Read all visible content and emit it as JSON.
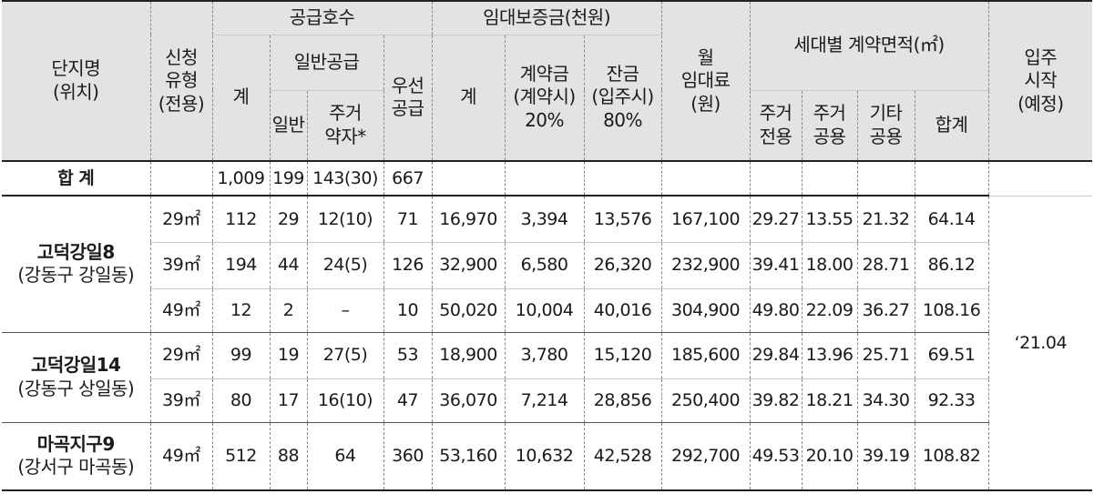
{
  "headers": {
    "complex_name": [
      "단지명",
      "(위치)"
    ],
    "type": [
      "신청",
      "유형",
      "(전용)"
    ],
    "supply_units": "공급호수",
    "supply_total": "계",
    "general_supply": "일반공급",
    "general": "일반",
    "housing_vulnerable": [
      "주거",
      "약자*"
    ],
    "priority_supply": [
      "우선",
      "공급"
    ],
    "deposit": "임대보증금(천원)",
    "deposit_total": "계",
    "contract_deposit": [
      "계약금",
      "(계약시)",
      "20%"
    ],
    "balance": [
      "잔금",
      "(입주시)",
      "80%"
    ],
    "monthly_rent": [
      "월",
      "임대료",
      "(원)"
    ],
    "contract_area": "세대별 계약면적(㎡)",
    "residential_exclusive": [
      "주거",
      "전용"
    ],
    "residential_common": [
      "주거",
      "공용"
    ],
    "other_common": [
      "기타",
      "공용"
    ],
    "area_total": "합계",
    "move_in": [
      "입주",
      "시작",
      "(예정)"
    ]
  },
  "total_row": {
    "label": "합 계",
    "supply_total": "1,009",
    "general": "199",
    "vulnerable": "143(30)",
    "priority": "667"
  },
  "complexes": [
    {
      "name": "고덕강일8",
      "location": "(강동구 강일동)",
      "rows": [
        {
          "type": "29㎡",
          "supply_total": "112",
          "general": "29",
          "vulnerable": "12(10)",
          "priority": "71",
          "deposit_total": "16,970",
          "contract": "3,394",
          "balance": "13,576",
          "rent": "167,100",
          "res_excl": "29.27",
          "res_common": "13.55",
          "other_common": "21.32",
          "area_total": "64.14"
        },
        {
          "type": "39㎡",
          "supply_total": "194",
          "general": "44",
          "vulnerable": "24(5)",
          "priority": "126",
          "deposit_total": "32,900",
          "contract": "6,580",
          "balance": "26,320",
          "rent": "232,900",
          "res_excl": "39.41",
          "res_common": "18.00",
          "other_common": "28.71",
          "area_total": "86.12"
        },
        {
          "type": "49㎡",
          "supply_total": "12",
          "general": "2",
          "vulnerable": "–",
          "priority": "10",
          "deposit_total": "50,020",
          "contract": "10,004",
          "balance": "40,016",
          "rent": "304,900",
          "res_excl": "49.80",
          "res_common": "22.09",
          "other_common": "36.27",
          "area_total": "108.16"
        }
      ]
    },
    {
      "name": "고덕강일14",
      "location": "(강동구 상일동)",
      "rows": [
        {
          "type": "29㎡",
          "supply_total": "99",
          "general": "19",
          "vulnerable": "27(5)",
          "priority": "53",
          "deposit_total": "18,900",
          "contract": "3,780",
          "balance": "15,120",
          "rent": "185,600",
          "res_excl": "29.84",
          "res_common": "13.96",
          "other_common": "25.71",
          "area_total": "69.51"
        },
        {
          "type": "39㎡",
          "supply_total": "80",
          "general": "17",
          "vulnerable": "16(10)",
          "priority": "47",
          "deposit_total": "36,070",
          "contract": "7,214",
          "balance": "28,856",
          "rent": "250,400",
          "res_excl": "39.82",
          "res_common": "18.21",
          "other_common": "34.30",
          "area_total": "92.33"
        }
      ]
    },
    {
      "name": "마곡지구9",
      "location": "(강서구 마곡동)",
      "rows": [
        {
          "type": "49㎡",
          "supply_total": "512",
          "general": "88",
          "vulnerable": "64",
          "priority": "360",
          "deposit_total": "53,160",
          "contract": "10,632",
          "balance": "42,528",
          "rent": "292,700",
          "res_excl": "49.53",
          "res_common": "20.10",
          "other_common": "39.19",
          "area_total": "108.82"
        }
      ]
    }
  ],
  "move_in_date": "‘21.04"
}
